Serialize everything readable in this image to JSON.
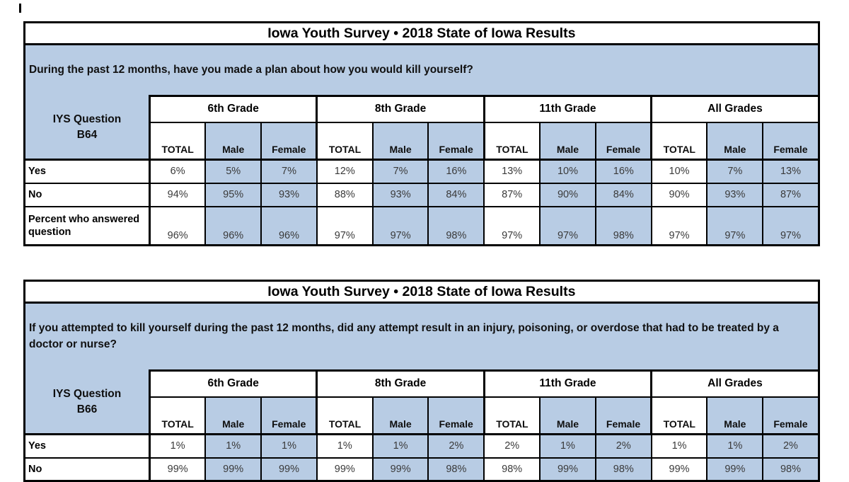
{
  "colors": {
    "band_blue": "#b8cce4",
    "border": "#000000",
    "data_text": "#3a3a3a"
  },
  "tables": [
    {
      "title": "Iowa Youth Survey • 2018 State of Iowa Results",
      "question": "During the past 12 months, have you made a plan about how you would kill yourself?",
      "question_id": {
        "line1": "IYS Question",
        "line2": "B64"
      },
      "grade_groups": [
        "6th Grade",
        "8th Grade",
        "11th Grade",
        "All Grades"
      ],
      "sub_columns": [
        "TOTAL",
        "Male",
        "Female"
      ],
      "rows": [
        {
          "label": "Yes",
          "values": [
            "6%",
            "5%",
            "7%",
            "12%",
            "7%",
            "16%",
            "13%",
            "10%",
            "16%",
            "10%",
            "7%",
            "13%"
          ]
        },
        {
          "label": "No",
          "values": [
            "94%",
            "95%",
            "93%",
            "88%",
            "93%",
            "84%",
            "87%",
            "90%",
            "84%",
            "90%",
            "93%",
            "87%"
          ]
        },
        {
          "label": "Percent who answered question",
          "tall": true,
          "values": [
            "96%",
            "96%",
            "96%",
            "97%",
            "97%",
            "98%",
            "97%",
            "97%",
            "98%",
            "97%",
            "97%",
            "97%"
          ]
        }
      ]
    },
    {
      "title": "Iowa Youth Survey • 2018 State of Iowa Results",
      "question": "If you attempted to kill yourself during the past 12 months, did any attempt result in an injury, poisoning, or overdose that had to be treated by a doctor or nurse?",
      "question_id": {
        "line1": "IYS Question",
        "line2": "B66"
      },
      "grade_groups": [
        "6th Grade",
        "8th Grade",
        "11th Grade",
        "All Grades"
      ],
      "sub_columns": [
        "TOTAL",
        "Male",
        "Female"
      ],
      "rows": [
        {
          "label": "Yes",
          "values": [
            "1%",
            "1%",
            "1%",
            "1%",
            "1%",
            "2%",
            "2%",
            "1%",
            "2%",
            "1%",
            "1%",
            "2%"
          ]
        },
        {
          "label": "No",
          "values": [
            "99%",
            "99%",
            "99%",
            "99%",
            "99%",
            "98%",
            "98%",
            "99%",
            "98%",
            "99%",
            "99%",
            "98%"
          ]
        }
      ]
    }
  ]
}
